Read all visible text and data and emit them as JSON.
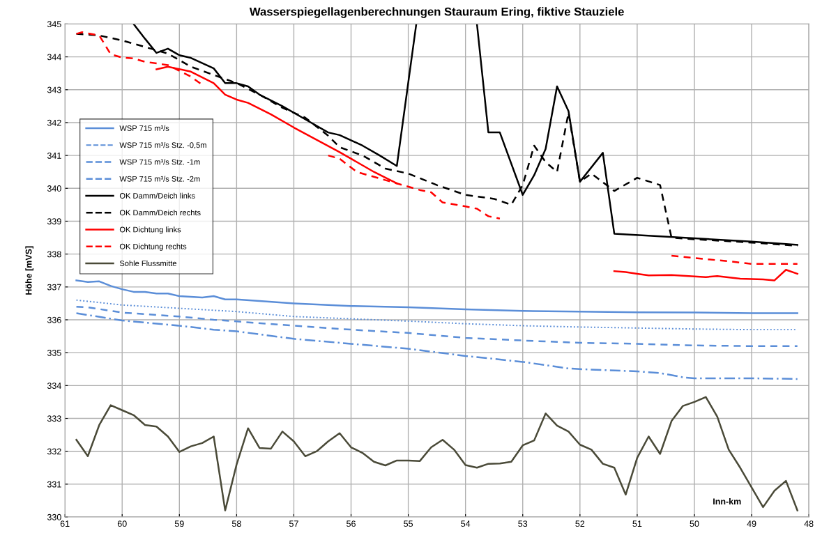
{
  "chart_data": {
    "type": "line",
    "title": "Wasserspiegellagenberechnungen Stauraum Ering, fiktive Stauziele",
    "xlabel": "Inn-km",
    "ylabel": "Höhe [mVS]",
    "xlim": [
      61,
      48
    ],
    "xticks": [
      61,
      60,
      59,
      58,
      57,
      56,
      55,
      54,
      53,
      52,
      51,
      50,
      49,
      48
    ],
    "ylim": [
      330,
      345
    ],
    "yticks": [
      330,
      331,
      332,
      333,
      334,
      335,
      336,
      337,
      338,
      339,
      340,
      341,
      342,
      343,
      344,
      345
    ],
    "grid": true,
    "legend": "top left",
    "marker": "none",
    "series": [
      {
        "name": "WSP 715 m³/s",
        "color": "#5b8ed8",
        "line_style": "solid",
        "x": [
          60.8,
          60.6,
          60.4,
          60.2,
          60.0,
          59.8,
          59.6,
          59.4,
          59.2,
          59.0,
          58.6,
          58.4,
          58.2,
          58.0,
          57.6,
          57.0,
          56.0,
          55.0,
          54.0,
          53.0,
          52.0,
          51.0,
          50.0,
          49.0,
          48.2
        ],
        "values": [
          337.2,
          337.15,
          337.17,
          337.03,
          336.93,
          336.85,
          336.85,
          336.8,
          336.8,
          336.72,
          336.68,
          336.72,
          336.62,
          336.62,
          336.57,
          336.5,
          336.42,
          336.38,
          336.32,
          336.27,
          336.25,
          336.23,
          336.22,
          336.2,
          336.2
        ]
      },
      {
        "name": "WSP 715 m³/s Stz. -0,5m",
        "color": "#5b8ed8",
        "line_style": "dotted",
        "x": [
          60.8,
          60.0,
          59.0,
          58.0,
          57.0,
          56.0,
          55.0,
          54.0,
          53.0,
          52.0,
          51.0,
          50.0,
          49.0,
          48.2
        ],
        "values": [
          336.6,
          336.45,
          336.35,
          336.25,
          336.1,
          336.03,
          335.96,
          335.88,
          335.82,
          335.78,
          335.75,
          335.72,
          335.7,
          335.7
        ]
      },
      {
        "name": "WSP 715 m³/s Stz. -1m",
        "color": "#5b8ed8",
        "line_style": "dashed",
        "x": [
          60.8,
          60.6,
          60.0,
          59.0,
          58.4,
          58.0,
          57.0,
          56.0,
          55.0,
          54.0,
          53.0,
          52.0,
          51.0,
          50.0,
          49.0,
          48.2
        ],
        "values": [
          336.4,
          336.38,
          336.22,
          336.1,
          336.0,
          335.95,
          335.82,
          335.7,
          335.6,
          335.45,
          335.37,
          335.3,
          335.27,
          335.22,
          335.2,
          335.2
        ]
      },
      {
        "name": "WSP 715 m³/s Stz. -2m",
        "color": "#5b8ed8",
        "line_style": "dashdot",
        "x": [
          60.8,
          60.0,
          59.0,
          58.4,
          58.0,
          57.0,
          56.0,
          55.0,
          54.0,
          53.0,
          52.2,
          52.0,
          51.0,
          50.6,
          50.2,
          50.0,
          49.0,
          48.2
        ],
        "values": [
          336.2,
          335.98,
          335.82,
          335.7,
          335.65,
          335.42,
          335.27,
          335.12,
          334.9,
          334.72,
          334.52,
          334.5,
          334.43,
          334.38,
          334.25,
          334.22,
          334.22,
          334.2
        ]
      },
      {
        "name": "OK Damm/Deich links",
        "color": "#000000",
        "line_style": "solid",
        "x": [
          59.8,
          59.6,
          59.4,
          59.2,
          59.0,
          58.8,
          58.4,
          58.2,
          58.0,
          57.8,
          57.6,
          57.2,
          56.8,
          56.4,
          56.2,
          55.8,
          55.5,
          55.2,
          54.86,
          54.3,
          53.8,
          53.6,
          53.4,
          53.0,
          52.8,
          52.6,
          52.4,
          52.2,
          52.0,
          51.6,
          51.4,
          50.0,
          49.0,
          48.2
        ],
        "values": [
          345.0,
          344.55,
          344.12,
          344.25,
          344.05,
          343.97,
          343.65,
          343.2,
          343.2,
          343.1,
          342.85,
          342.5,
          342.1,
          341.7,
          341.62,
          341.3,
          341.0,
          340.68,
          345.0,
          null,
          345.0,
          341.7,
          341.7,
          339.8,
          340.4,
          341.2,
          343.1,
          342.35,
          340.2,
          341.08,
          338.62,
          338.48,
          338.38,
          338.28
        ]
      },
      {
        "name": "OK Damm/Deich rechts",
        "color": "#000000",
        "line_style": "dashed",
        "x": [
          60.8,
          60.4,
          60.0,
          59.6,
          59.2,
          58.8,
          58.4,
          58.0,
          57.6,
          57.2,
          56.8,
          56.4,
          56.2,
          55.8,
          55.4,
          55.0,
          54.5,
          54.0,
          53.5,
          53.2,
          53.0,
          52.8,
          52.6,
          52.4,
          52.2,
          52.0,
          51.8,
          51.4,
          51.0,
          50.6,
          50.4,
          50.0,
          49.0,
          48.2
        ],
        "values": [
          344.7,
          344.65,
          344.5,
          344.3,
          344.1,
          343.7,
          343.45,
          343.2,
          342.85,
          342.45,
          342.15,
          341.6,
          341.25,
          341.0,
          340.6,
          340.45,
          340.1,
          339.8,
          339.68,
          339.5,
          340.1,
          341.3,
          340.8,
          340.5,
          342.3,
          340.2,
          340.45,
          339.92,
          340.32,
          340.1,
          338.5,
          338.45,
          338.35,
          338.25
        ]
      },
      {
        "name": "OK Dichtung links",
        "color": "#ff0000",
        "line_style": "solid",
        "x": [
          59.4,
          59.2,
          58.8,
          58.4,
          58.2,
          58.0,
          57.8,
          57.4,
          57.0,
          56.2,
          55.6,
          55.2,
          53.3,
          51.4,
          51.2,
          51.0,
          50.8,
          50.4,
          50.0,
          49.8,
          49.6,
          49.2,
          48.8,
          48.6,
          48.4,
          48.2
        ],
        "values": [
          343.62,
          343.7,
          343.55,
          343.2,
          342.85,
          342.7,
          342.6,
          342.25,
          341.85,
          341.1,
          340.5,
          340.15,
          null,
          337.48,
          337.45,
          337.4,
          337.35,
          337.36,
          337.32,
          337.3,
          337.33,
          337.25,
          337.23,
          337.2,
          337.52,
          337.4
        ]
      },
      {
        "name": "OK Dichtung rechts",
        "color": "#ff0000",
        "line_style": "dashed",
        "x": [
          60.8,
          60.7,
          60.4,
          60.2,
          60.0,
          59.8,
          59.6,
          59.2,
          58.8,
          58.6,
          57.5,
          56.4,
          56.2,
          55.9,
          55.6,
          55.2,
          54.8,
          54.6,
          54.4,
          54.0,
          53.8,
          53.6,
          53.4,
          51.9,
          50.4,
          50.0,
          49.4,
          49.0,
          48.2
        ],
        "values": [
          344.7,
          344.75,
          344.65,
          344.08,
          343.98,
          343.95,
          343.85,
          343.75,
          343.4,
          343.15,
          null,
          341.0,
          340.9,
          340.5,
          340.35,
          340.15,
          339.95,
          339.88,
          339.57,
          339.45,
          339.38,
          339.15,
          339.08,
          null,
          337.95,
          337.88,
          337.78,
          337.7,
          337.7
        ]
      },
      {
        "name": "Sohle Flussmitte",
        "color": "#4a4a38",
        "line_style": "solid",
        "x": [
          60.8,
          60.6,
          60.4,
          60.2,
          60.0,
          59.8,
          59.6,
          59.4,
          59.2,
          59.0,
          58.8,
          58.6,
          58.4,
          58.2,
          58.0,
          57.8,
          57.6,
          57.4,
          57.2,
          57.0,
          56.8,
          56.6,
          56.4,
          56.2,
          56.0,
          55.8,
          55.6,
          55.4,
          55.2,
          55.0,
          54.8,
          54.6,
          54.4,
          54.2,
          54.0,
          53.8,
          53.6,
          53.4,
          53.2,
          53.0,
          52.8,
          52.6,
          52.4,
          52.2,
          52.0,
          51.8,
          51.6,
          51.4,
          51.2,
          51.0,
          50.8,
          50.6,
          50.4,
          50.2,
          50.0,
          49.8,
          49.6,
          49.4,
          49.2,
          49.0,
          48.8,
          48.6,
          48.4,
          48.2
        ],
        "values": [
          332.35,
          331.85,
          332.8,
          333.4,
          333.25,
          333.1,
          332.8,
          332.75,
          332.45,
          331.98,
          332.15,
          332.25,
          332.45,
          330.2,
          331.6,
          332.7,
          332.1,
          332.08,
          332.6,
          332.3,
          331.85,
          332.0,
          332.3,
          332.55,
          332.12,
          331.95,
          331.68,
          331.57,
          331.72,
          331.72,
          331.7,
          332.12,
          332.35,
          332.05,
          331.58,
          331.5,
          331.62,
          331.63,
          331.68,
          332.18,
          332.33,
          333.15,
          332.78,
          332.6,
          332.2,
          332.05,
          331.62,
          331.5,
          330.68,
          331.8,
          332.45,
          331.92,
          332.92,
          333.38,
          333.5,
          333.65,
          333.05,
          332.05,
          331.5,
          330.9,
          330.3,
          330.8,
          331.1,
          330.2
        ]
      }
    ]
  }
}
